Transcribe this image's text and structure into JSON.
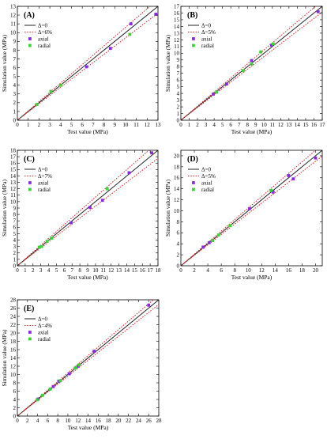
{
  "figure": {
    "layout_order": [
      "A",
      "B",
      "C",
      "D",
      "E"
    ]
  },
  "chart_data": [
    {
      "type": "scatter",
      "panel_label": "(A)",
      "xlabel": "Test value (MPa)",
      "ylabel": "Simulation value (MPa)",
      "xlim": [
        0,
        13
      ],
      "ylim": [
        0,
        13
      ],
      "xticks": [
        0,
        1,
        2,
        3,
        4,
        5,
        6,
        7,
        8,
        9,
        10,
        11,
        12,
        13
      ],
      "yticks": [
        0,
        1,
        2,
        3,
        4,
        5,
        6,
        7,
        8,
        9,
        10,
        11,
        12,
        13
      ],
      "grid": false,
      "legend_position": "top-left",
      "reference_lines": [
        {
          "label": "Δ=0",
          "slope": 1.0,
          "style": "solid",
          "color": "#222222"
        },
        {
          "label": "Δ=6%",
          "slopes": [
            1.06,
            0.94
          ],
          "style": "dotted",
          "color": "#d42a2a"
        }
      ],
      "series": [
        {
          "name": "axial",
          "color": "#8a2be2",
          "marker": "square",
          "points": [
            [
              6.4,
              6.1
            ],
            [
              8.6,
              8.2
            ],
            [
              10.5,
              11.0
            ],
            [
              12.8,
              12.1
            ]
          ]
        },
        {
          "name": "radial",
          "color": "#3cd23c",
          "marker": "square",
          "points": [
            [
              1.8,
              1.8
            ],
            [
              3.1,
              3.3
            ],
            [
              4.0,
              4.0
            ],
            [
              10.4,
              9.8
            ]
          ]
        }
      ]
    },
    {
      "type": "scatter",
      "panel_label": "(B)",
      "xlabel": "Test value (MPa)",
      "ylabel": "Simulation value (MPa)",
      "xlim": [
        0,
        17
      ],
      "ylim": [
        0,
        17
      ],
      "xticks": [
        0,
        1,
        2,
        3,
        4,
        5,
        6,
        7,
        8,
        9,
        10,
        11,
        12,
        13,
        14,
        15,
        16,
        17
      ],
      "yticks": [
        0,
        1,
        2,
        3,
        4,
        5,
        6,
        7,
        8,
        9,
        10,
        11,
        12,
        13,
        14,
        15,
        16,
        17
      ],
      "grid": false,
      "legend_position": "top-left",
      "reference_lines": [
        {
          "label": "Δ=0",
          "slope": 1.0,
          "style": "solid",
          "color": "#222222"
        },
        {
          "label": "Δ=5%",
          "slopes": [
            1.05,
            0.95
          ],
          "style": "dotted",
          "color": "#d42a2a"
        }
      ],
      "series": [
        {
          "name": "axial",
          "color": "#8a2be2",
          "marker": "square",
          "points": [
            [
              3.9,
              3.9
            ],
            [
              5.5,
              5.4
            ],
            [
              8.5,
              8.9
            ],
            [
              10.9,
              11.2
            ],
            [
              16.5,
              16.2
            ]
          ]
        },
        {
          "name": "radial",
          "color": "#3cd23c",
          "marker": "square",
          "points": [
            [
              4.3,
              4.2
            ],
            [
              7.5,
              7.4
            ],
            [
              8.5,
              8.4
            ],
            [
              9.6,
              10.2
            ],
            [
              11.1,
              11.4
            ]
          ]
        }
      ]
    },
    {
      "type": "scatter",
      "panel_label": "(C)",
      "xlabel": "Test value (MPa)",
      "ylabel": "Simulation value (MPa)",
      "xlim": [
        0,
        18
      ],
      "ylim": [
        0,
        18
      ],
      "xticks": [
        0,
        1,
        2,
        3,
        4,
        5,
        6,
        7,
        8,
        9,
        10,
        11,
        12,
        13,
        14,
        15,
        16,
        17,
        18
      ],
      "yticks": [
        0,
        1,
        2,
        3,
        4,
        5,
        6,
        7,
        8,
        9,
        10,
        11,
        12,
        13,
        14,
        15,
        16,
        17,
        18
      ],
      "grid": false,
      "legend_position": "top-left",
      "reference_lines": [
        {
          "label": "Δ=0",
          "slope": 1.0,
          "style": "solid",
          "color": "#222222"
        },
        {
          "label": "Δ=7%",
          "slopes": [
            1.07,
            0.93
          ],
          "style": "dotted",
          "color": "#d42a2a"
        }
      ],
      "series": [
        {
          "name": "axial",
          "color": "#8a2be2",
          "marker": "square",
          "points": [
            [
              6.9,
              6.7
            ],
            [
              9.3,
              9.1
            ],
            [
              10.9,
              10.2
            ],
            [
              14.3,
              14.5
            ],
            [
              17.2,
              17.6
            ]
          ]
        },
        {
          "name": "radial",
          "color": "#3cd23c",
          "marker": "square",
          "points": [
            [
              2.8,
              2.9
            ],
            [
              3.1,
              3.0
            ],
            [
              3.8,
              3.8
            ],
            [
              4.4,
              4.3
            ],
            [
              11.5,
              12.0
            ]
          ]
        }
      ]
    },
    {
      "type": "scatter",
      "panel_label": "(D)",
      "xlabel": "Test value (MPa)",
      "ylabel": "Simulation value (MPa)",
      "xlim": [
        0,
        21
      ],
      "ylim": [
        0,
        21
      ],
      "xticks": [
        0,
        2,
        4,
        6,
        8,
        10,
        12,
        14,
        16,
        18,
        20
      ],
      "yticks": [
        0,
        2,
        4,
        6,
        8,
        10,
        12,
        14,
        16,
        18,
        20
      ],
      "grid": false,
      "legend_position": "top-left",
      "reference_lines": [
        {
          "label": "Δ=0",
          "slope": 1.0,
          "style": "solid",
          "color": "#222222"
        },
        {
          "label": "Δ=5%",
          "slopes": [
            1.05,
            0.95
          ],
          "style": "dotted",
          "color": "#d42a2a"
        }
      ],
      "series": [
        {
          "name": "axial",
          "color": "#8a2be2",
          "marker": "square",
          "points": [
            [
              3.3,
              3.4
            ],
            [
              4.2,
              4.2
            ],
            [
              10.2,
              10.4
            ],
            [
              13.7,
              13.4
            ],
            [
              16.0,
              16.4
            ],
            [
              16.7,
              15.8
            ],
            [
              20.0,
              19.6
            ]
          ]
        },
        {
          "name": "radial",
          "color": "#3cd23c",
          "marker": "square",
          "points": [
            [
              4.7,
              4.6
            ],
            [
              5.6,
              5.6
            ],
            [
              7.3,
              7.3
            ],
            [
              13.4,
              13.7
            ]
          ]
        }
      ]
    },
    {
      "type": "scatter",
      "panel_label": "(E)",
      "xlabel": "Test value (MPa)",
      "ylabel": "Simulation value (MPa)",
      "xlim": [
        0,
        28
      ],
      "ylim": [
        0,
        28
      ],
      "xticks": [
        0,
        2,
        4,
        6,
        8,
        10,
        12,
        14,
        16,
        18,
        20,
        22,
        24,
        26,
        28
      ],
      "yticks": [
        0,
        2,
        4,
        6,
        8,
        10,
        12,
        14,
        16,
        18,
        20,
        22,
        24,
        26,
        28
      ],
      "grid": false,
      "legend_position": "top-left",
      "reference_lines": [
        {
          "label": "Δ=0",
          "slope": 1.0,
          "style": "solid",
          "color": "#222222"
        },
        {
          "label": "Δ=4%",
          "slopes": [
            1.04,
            0.96
          ],
          "style": "dotted",
          "color": "#d42a2a"
        }
      ],
      "series": [
        {
          "name": "axial",
          "color": "#8a2be2",
          "marker": "square",
          "points": [
            [
              4.1,
              4.1
            ],
            [
              7.1,
              7.1
            ],
            [
              8.2,
              8.4
            ],
            [
              10.3,
              10.2
            ],
            [
              12.0,
              12.0
            ],
            [
              15.2,
              15.6
            ],
            [
              26.0,
              26.7
            ]
          ]
        },
        {
          "name": "radial",
          "color": "#3cd23c",
          "marker": "square",
          "points": [
            [
              3.9,
              3.9
            ],
            [
              5.0,
              5.0
            ],
            [
              6.5,
              6.5
            ],
            [
              8.5,
              8.5
            ],
            [
              11.5,
              11.6
            ],
            [
              12.2,
              12.3
            ]
          ]
        }
      ]
    }
  ]
}
